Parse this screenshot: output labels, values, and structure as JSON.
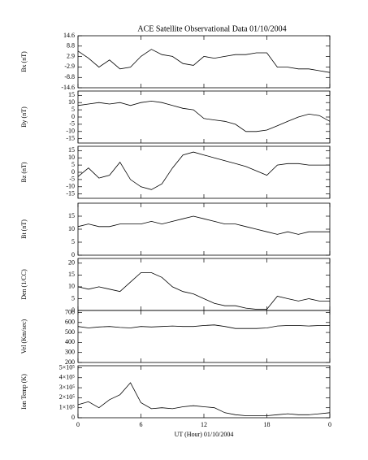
{
  "chart_data": [
    {
      "type": "line",
      "title": "ACE Satellite Observational Data   01/10/2004",
      "y_label": "Bx (nT)",
      "color": "#000000",
      "x": [
        0,
        1,
        2,
        3,
        4,
        5,
        6,
        7,
        8,
        9,
        10,
        11,
        12,
        13,
        14,
        15,
        16,
        17,
        18,
        19,
        20,
        21,
        22,
        23,
        24
      ],
      "values": [
        6,
        2,
        -3,
        1,
        -4,
        -3,
        3,
        7,
        4,
        3,
        -1,
        -2,
        3,
        2,
        3,
        4,
        4,
        5,
        5,
        -3,
        -3,
        -4,
        -4,
        -5,
        -6
      ],
      "xlim": [
        0,
        24
      ],
      "xticks": [
        0,
        6,
        12,
        18,
        {
          "value": 24,
          "label": "0"
        }
      ],
      "ylim": [
        -14.6,
        14.6
      ],
      "yticks": [
        14.6,
        8.8,
        2.9,
        -2.9,
        -8.8,
        -14.6
      ]
    },
    {
      "type": "line",
      "y_label": "By (nT)",
      "color": "#000000",
      "x": [
        0,
        1,
        2,
        3,
        4,
        5,
        6,
        7,
        8,
        9,
        10,
        11,
        12,
        13,
        14,
        15,
        16,
        17,
        18,
        19,
        20,
        21,
        22,
        23,
        24
      ],
      "values": [
        8,
        9,
        10,
        9,
        10,
        8,
        10,
        11,
        10,
        8,
        6,
        5,
        -1,
        -2,
        -3,
        -5,
        -10,
        -10,
        -9,
        -6,
        -3,
        0,
        2,
        1,
        -3
      ],
      "xlim": [
        0,
        24
      ],
      "xticks": [
        0,
        6,
        12,
        18,
        {
          "value": 24,
          "label": "0"
        }
      ],
      "ylim": [
        -18,
        18
      ],
      "yticks": [
        15,
        10,
        5,
        0,
        -5,
        -10,
        -15
      ]
    },
    {
      "type": "line",
      "y_label": "Bz (nT)",
      "color": "#000000",
      "x": [
        0,
        1,
        2,
        3,
        4,
        5,
        6,
        7,
        8,
        9,
        10,
        11,
        12,
        13,
        14,
        15,
        16,
        17,
        18,
        19,
        20,
        21,
        22,
        23,
        24
      ],
      "values": [
        -3,
        3,
        -4,
        -2,
        7,
        -5,
        -10,
        -12,
        -8,
        3,
        12,
        14,
        12,
        10,
        8,
        6,
        4,
        1,
        -2,
        5,
        6,
        6,
        5,
        5,
        5
      ],
      "xlim": [
        0,
        24
      ],
      "xticks": [
        0,
        6,
        12,
        18,
        {
          "value": 24,
          "label": "0"
        }
      ],
      "ylim": [
        -18,
        18
      ],
      "yticks": [
        15,
        10,
        5,
        0,
        -5,
        -10,
        -15
      ]
    },
    {
      "type": "line",
      "y_label": "Bt (nT)",
      "color": "#000000",
      "x": [
        0,
        1,
        2,
        3,
        4,
        5,
        6,
        7,
        8,
        9,
        10,
        11,
        12,
        13,
        14,
        15,
        16,
        17,
        18,
        19,
        20,
        21,
        22,
        23,
        24
      ],
      "values": [
        11,
        12,
        11,
        11,
        12,
        12,
        12,
        13,
        12,
        13,
        14,
        15,
        14,
        13,
        12,
        12,
        11,
        10,
        9,
        8,
        9,
        8,
        9,
        9,
        9
      ],
      "xlim": [
        0,
        24
      ],
      "xticks": [
        0,
        6,
        12,
        18,
        {
          "value": 24,
          "label": "0"
        }
      ],
      "ylim": [
        0,
        20
      ],
      "yticks": [
        0,
        5,
        10,
        15
      ]
    },
    {
      "type": "line",
      "y_label": "Den (1/CC)",
      "color": "#000000",
      "x": [
        0,
        1,
        2,
        3,
        4,
        5,
        6,
        7,
        8,
        9,
        10,
        11,
        12,
        13,
        14,
        15,
        16,
        17,
        18,
        19,
        20,
        21,
        22,
        23,
        24
      ],
      "values": [
        10,
        9,
        10,
        9,
        8,
        12,
        16,
        16,
        14,
        10,
        8,
        7,
        5,
        3,
        2,
        2,
        1,
        0.5,
        0.5,
        6,
        5,
        4,
        5,
        4,
        4
      ],
      "xlim": [
        0,
        24
      ],
      "xticks": [
        0,
        6,
        12,
        18,
        {
          "value": 24,
          "label": "0"
        }
      ],
      "ylim": [
        0,
        22
      ],
      "yticks": [
        0,
        5,
        10,
        15,
        20
      ]
    },
    {
      "type": "line",
      "y_label": "Vel (Km/sec)",
      "color": "#000000",
      "x": [
        0,
        1,
        2,
        3,
        4,
        5,
        6,
        7,
        8,
        9,
        10,
        11,
        12,
        13,
        14,
        15,
        16,
        17,
        18,
        19,
        20,
        21,
        22,
        23,
        24
      ],
      "values": [
        560,
        545,
        555,
        560,
        550,
        545,
        560,
        555,
        560,
        565,
        560,
        560,
        570,
        575,
        560,
        540,
        540,
        540,
        545,
        565,
        570,
        570,
        565,
        570,
        570
      ],
      "xlim": [
        0,
        24
      ],
      "xticks": [
        0,
        6,
        12,
        18,
        {
          "value": 24,
          "label": "0"
        }
      ],
      "ylim": [
        200,
        720
      ],
      "yticks": [
        200,
        300,
        400,
        500,
        600,
        700
      ]
    },
    {
      "type": "line",
      "y_label": "Ion Temp (K)",
      "x_label": "UT (Hour)   01/10/2004",
      "color": "#000000",
      "x": [
        0,
        1,
        2,
        3,
        4,
        5,
        6,
        7,
        8,
        9,
        10,
        11,
        12,
        13,
        14,
        15,
        16,
        17,
        18,
        19,
        20,
        21,
        22,
        23,
        24
      ],
      "values": [
        130000,
        160000,
        100000,
        180000,
        230000,
        350000,
        150000,
        90000,
        100000,
        90000,
        110000,
        120000,
        110000,
        100000,
        50000,
        30000,
        20000,
        20000,
        20000,
        30000,
        40000,
        30000,
        30000,
        40000,
        50000
      ],
      "xlim": [
        0,
        24
      ],
      "xticks": [
        0,
        6,
        12,
        18,
        {
          "value": 24,
          "label": "0"
        }
      ],
      "ylim": [
        0,
        520000
      ],
      "yticks": [
        0,
        {
          "value": 100000,
          "label": "1×10⁵"
        },
        {
          "value": 200000,
          "label": "2×10⁵"
        },
        {
          "value": 300000,
          "label": "3×10⁵"
        },
        {
          "value": 400000,
          "label": "4×10⁵"
        },
        {
          "value": 500000,
          "label": "5×10⁵"
        }
      ]
    }
  ]
}
